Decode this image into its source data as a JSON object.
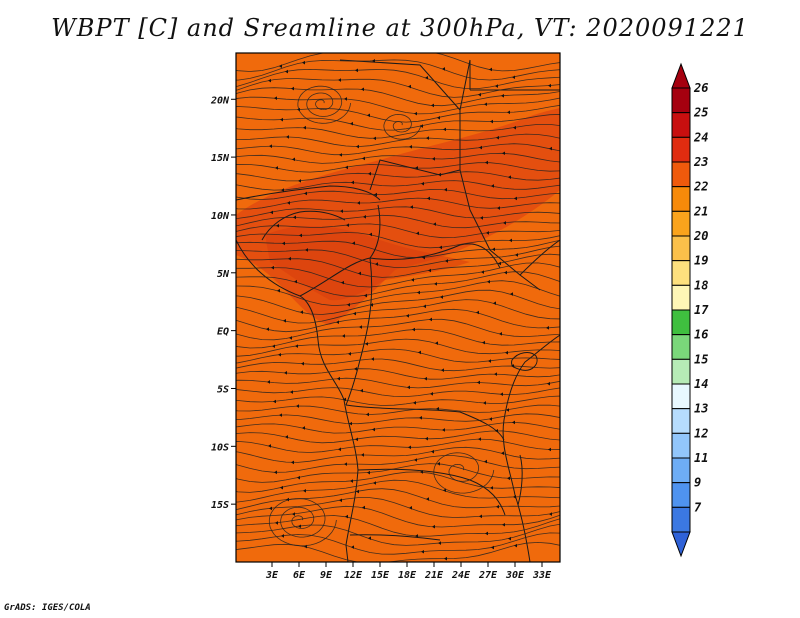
{
  "title": "WBPT [C] and Sreamline at 300hPa, VT: 2020091221",
  "credit": "GrADS: IGES/COLA",
  "map": {
    "lon_range": [
      -1,
      35
    ],
    "lat_range": [
      -20,
      24
    ],
    "lon_ticks": [
      {
        "value": 3,
        "label": "3E"
      },
      {
        "value": 6,
        "label": "6E"
      },
      {
        "value": 9,
        "label": "9E"
      },
      {
        "value": 12,
        "label": "12E"
      },
      {
        "value": 15,
        "label": "15E"
      },
      {
        "value": 18,
        "label": "18E"
      },
      {
        "value": 21,
        "label": "21E"
      },
      {
        "value": 24,
        "label": "24E"
      },
      {
        "value": 27,
        "label": "27E"
      },
      {
        "value": 30,
        "label": "30E"
      },
      {
        "value": 33,
        "label": "33E"
      }
    ],
    "lat_ticks": [
      {
        "value": 20,
        "label": "20N"
      },
      {
        "value": 15,
        "label": "15N"
      },
      {
        "value": 10,
        "label": "10N"
      },
      {
        "value": 5,
        "label": "5N"
      },
      {
        "value": 0,
        "label": "EQ"
      },
      {
        "value": -5,
        "label": "5S"
      },
      {
        "value": -10,
        "label": "10S"
      },
      {
        "value": -15,
        "label": "15S"
      }
    ],
    "background_color": "#f06a0c",
    "warm_band_color": "#e24a10"
  },
  "colorbar": {
    "levels": [
      {
        "label": "26",
        "color": "#a5000f"
      },
      {
        "label": "25",
        "color": "#c80f0f"
      },
      {
        "label": "24",
        "color": "#e02c10"
      },
      {
        "label": "23",
        "color": "#ef5a0c"
      },
      {
        "label": "22",
        "color": "#f78a0a"
      },
      {
        "label": "21",
        "color": "#faa31c"
      },
      {
        "label": "20",
        "color": "#fbc04a"
      },
      {
        "label": "19",
        "color": "#fde07e"
      },
      {
        "label": "18",
        "color": "#fef6b6"
      },
      {
        "label": "17",
        "color": "#3fbf3f"
      },
      {
        "label": "16",
        "color": "#7ad77a"
      },
      {
        "label": "15",
        "color": "#b6ebb6"
      },
      {
        "label": "14",
        "color": "#e8f8ff"
      },
      {
        "label": "13",
        "color": "#b6dcfd"
      },
      {
        "label": "12",
        "color": "#92c6fb"
      },
      {
        "label": "11",
        "color": "#6eadf5"
      },
      {
        "label": "9",
        "color": "#4f93ef"
      },
      {
        "label": "7",
        "color": "#3b78e2"
      }
    ],
    "bottom_color": "#2f62d8"
  }
}
